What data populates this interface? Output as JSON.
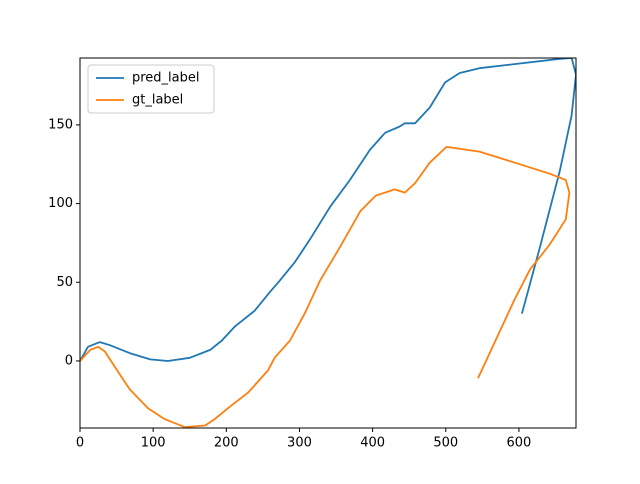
{
  "chart_data": {
    "type": "line",
    "xlim": [
      0,
      678
    ],
    "ylim": [
      -42.6,
      192.5
    ],
    "xticks": [
      0,
      100,
      200,
      300,
      400,
      500,
      600
    ],
    "yticks": [
      0,
      50,
      100,
      150
    ],
    "grid": false,
    "legend": "upper left",
    "series": [
      {
        "name": "pred_label",
        "color": "#1f77b4",
        "x": [
          0,
          11,
          27,
          41,
          68,
          96,
          120,
          150,
          178,
          194,
          212,
          239,
          260,
          273,
          294,
          314,
          342,
          369,
          396,
          417,
          437,
          444,
          458,
          478,
          499,
          519,
          546,
          601,
          656,
          672,
          678,
          672,
          656,
          628,
          604
        ],
        "values": [
          0,
          9,
          12,
          10,
          5,
          1,
          0,
          2,
          7,
          13,
          22,
          32,
          44,
          51,
          63,
          77,
          98,
          115,
          134,
          145,
          149,
          151,
          151,
          161,
          177,
          183,
          186,
          189,
          192,
          192.5,
          182,
          156,
          121,
          71,
          30
        ]
      },
      {
        "name": "gt_label",
        "color": "#ff7f0e",
        "x": [
          0,
          14,
          25,
          34,
          48,
          68,
          93,
          116,
          143,
          171,
          184,
          205,
          230,
          257,
          266,
          287,
          307,
          328,
          355,
          383,
          404,
          430,
          444,
          458,
          478,
          501,
          546,
          601,
          642,
          664,
          669,
          664,
          642,
          615,
          594,
          544
        ],
        "values": [
          0,
          7,
          9,
          6,
          -4,
          -18,
          -30,
          -37,
          -42,
          -41,
          -37,
          -29,
          -20,
          -6,
          2,
          13,
          30,
          51,
          72,
          95,
          105,
          109,
          107,
          113,
          126,
          136,
          133,
          125,
          119,
          115,
          107,
          90,
          74,
          58,
          39,
          -11
        ]
      }
    ]
  }
}
